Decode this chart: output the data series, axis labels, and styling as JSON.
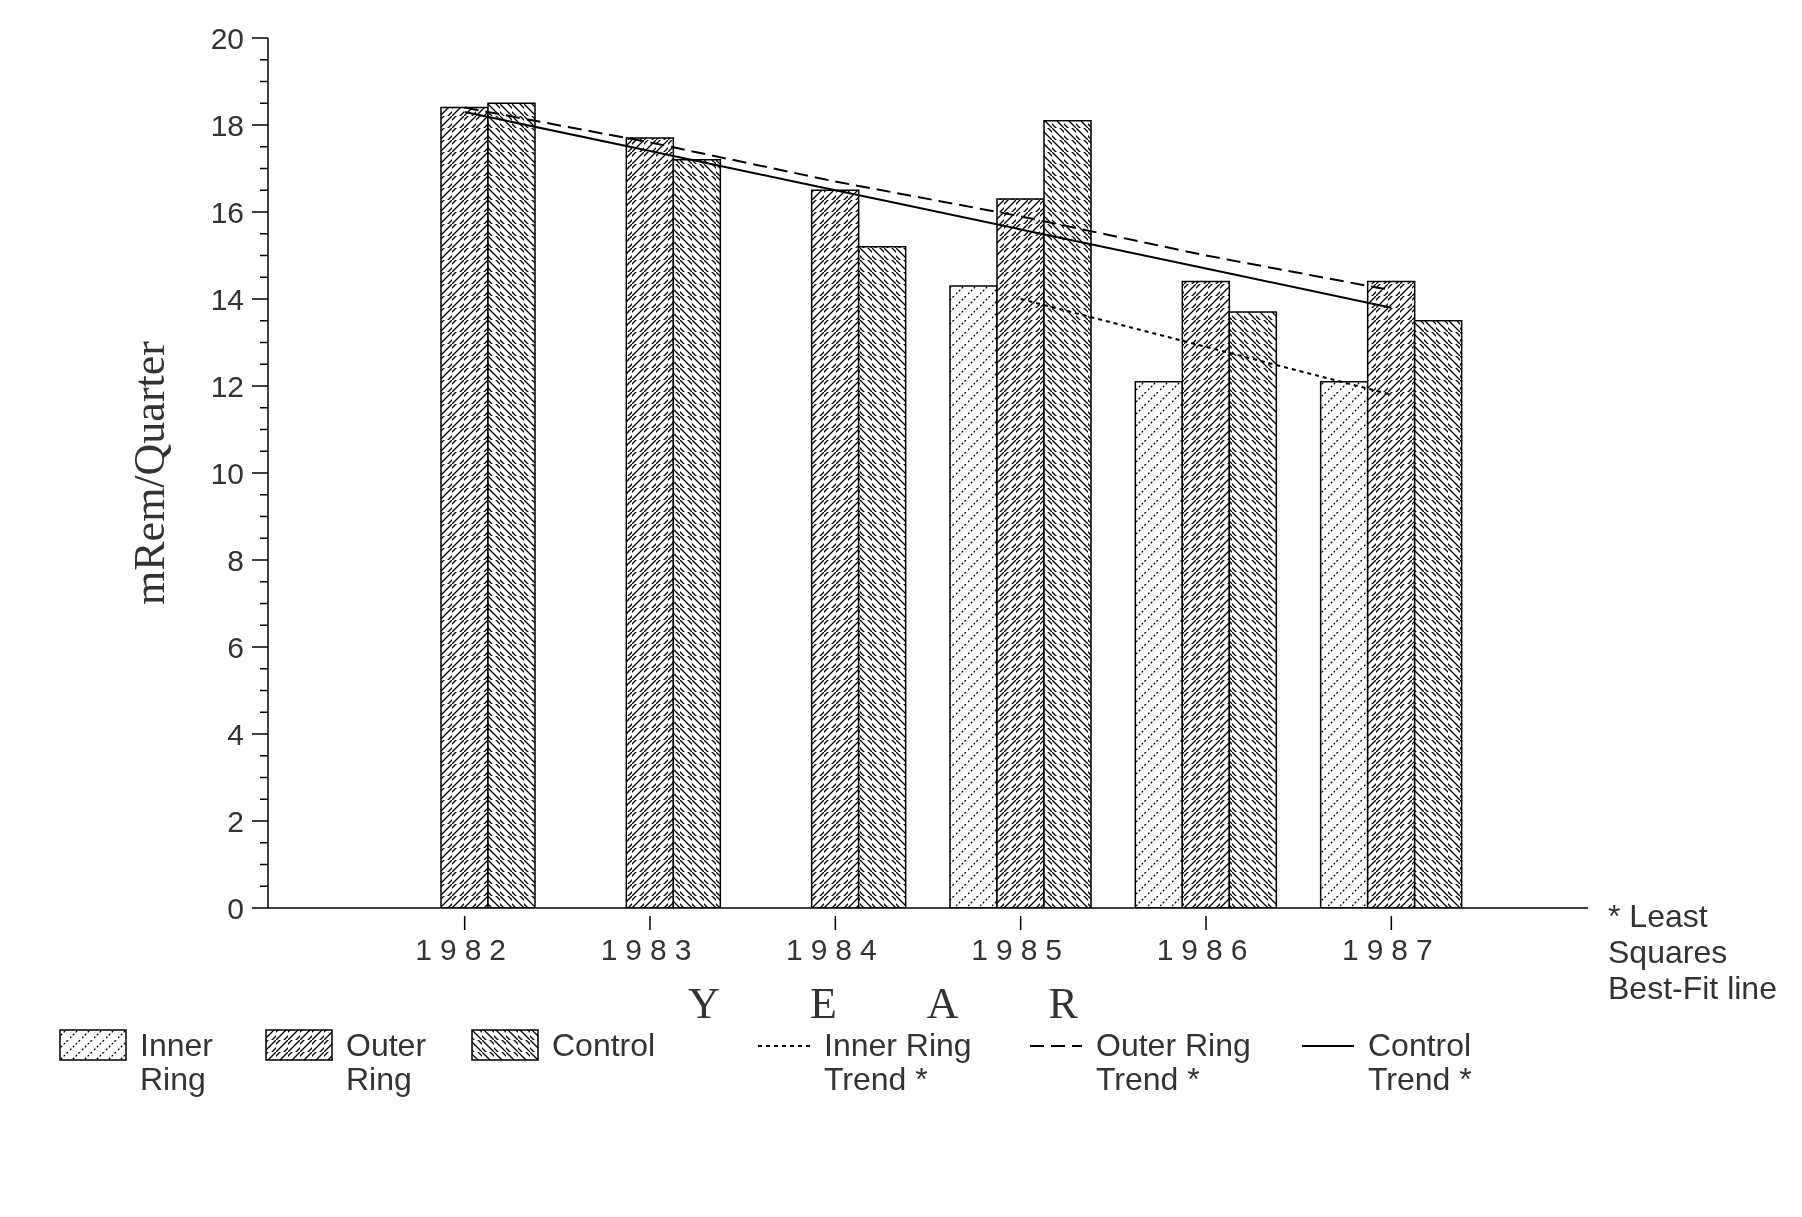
{
  "chart_data": {
    "type": "bar",
    "xlabel": "YEAR",
    "ylabel": "mRem/Quarter",
    "categories": [
      "1982",
      "1983",
      "1984",
      "1985",
      "1986",
      "1987"
    ],
    "ylim": [
      0,
      20
    ],
    "yticks": [
      0,
      {
        "value": 0.5,
        "label": null
      },
      {
        "value": 1,
        "label": null
      },
      {
        "value": 1.5,
        "label": null
      },
      2,
      {
        "value": 2.5,
        "label": null
      },
      {
        "value": 3,
        "label": null
      },
      {
        "value": 3.5,
        "label": null
      },
      4,
      {
        "value": 4.5,
        "label": null
      },
      {
        "value": 5,
        "label": null
      },
      {
        "value": 5.5,
        "label": null
      },
      6,
      {
        "value": 6.5,
        "label": null
      },
      {
        "value": 7,
        "label": null
      },
      {
        "value": 7.5,
        "label": null
      },
      8,
      {
        "value": 8.5,
        "label": null
      },
      {
        "value": 9,
        "label": null
      },
      {
        "value": 9.5,
        "label": null
      },
      10,
      {
        "value": 10.5,
        "label": null
      },
      {
        "value": 11,
        "label": null
      },
      {
        "value": 11.5,
        "label": null
      },
      12,
      {
        "value": 12.5,
        "label": null
      },
      {
        "value": 13,
        "label": null
      },
      {
        "value": 13.5,
        "label": null
      },
      14,
      {
        "value": 14.5,
        "label": null
      },
      {
        "value": 15,
        "label": null
      },
      {
        "value": 15.5,
        "label": null
      },
      16,
      {
        "value": 16.5,
        "label": null
      },
      {
        "value": 17,
        "label": null
      },
      {
        "value": 17.5,
        "label": null
      },
      18,
      {
        "value": 18.5,
        "label": null
      },
      {
        "value": 19,
        "label": null
      },
      {
        "value": 19.5,
        "label": null
      },
      20
    ],
    "legend": "bottom",
    "annotations": [
      "* Least Squares Best-Fit line"
    ],
    "series": [
      {
        "name": "Inner Ring",
        "color": "#000000",
        "values": [
          null,
          null,
          null,
          14.3,
          12.1,
          12.1
        ]
      },
      {
        "name": "Outer Ring",
        "color": "#000000",
        "values": [
          18.4,
          17.7,
          16.5,
          16.3,
          14.4,
          14.4
        ]
      },
      {
        "name": "Control",
        "color": "#000000",
        "values": [
          18.5,
          17.2,
          15.2,
          18.1,
          13.7,
          13.5
        ]
      },
      {
        "name": "Inner Ring Trend *",
        "type": "line",
        "line_style": "dotted",
        "color": "#000000",
        "values": [
          null,
          null,
          null,
          14.0,
          12.9,
          11.8
        ]
      },
      {
        "name": "Outer Ring Trend *",
        "type": "line",
        "line_style": "dashed",
        "color": "#000000",
        "values": [
          18.4,
          17.6,
          16.7,
          15.9,
          15.0,
          14.2
        ]
      },
      {
        "name": "Control Trend *",
        "type": "line",
        "line_style": "solid",
        "color": "#000000",
        "values": [
          18.3,
          17.4,
          16.5,
          15.6,
          14.7,
          13.8
        ]
      }
    ]
  }
}
